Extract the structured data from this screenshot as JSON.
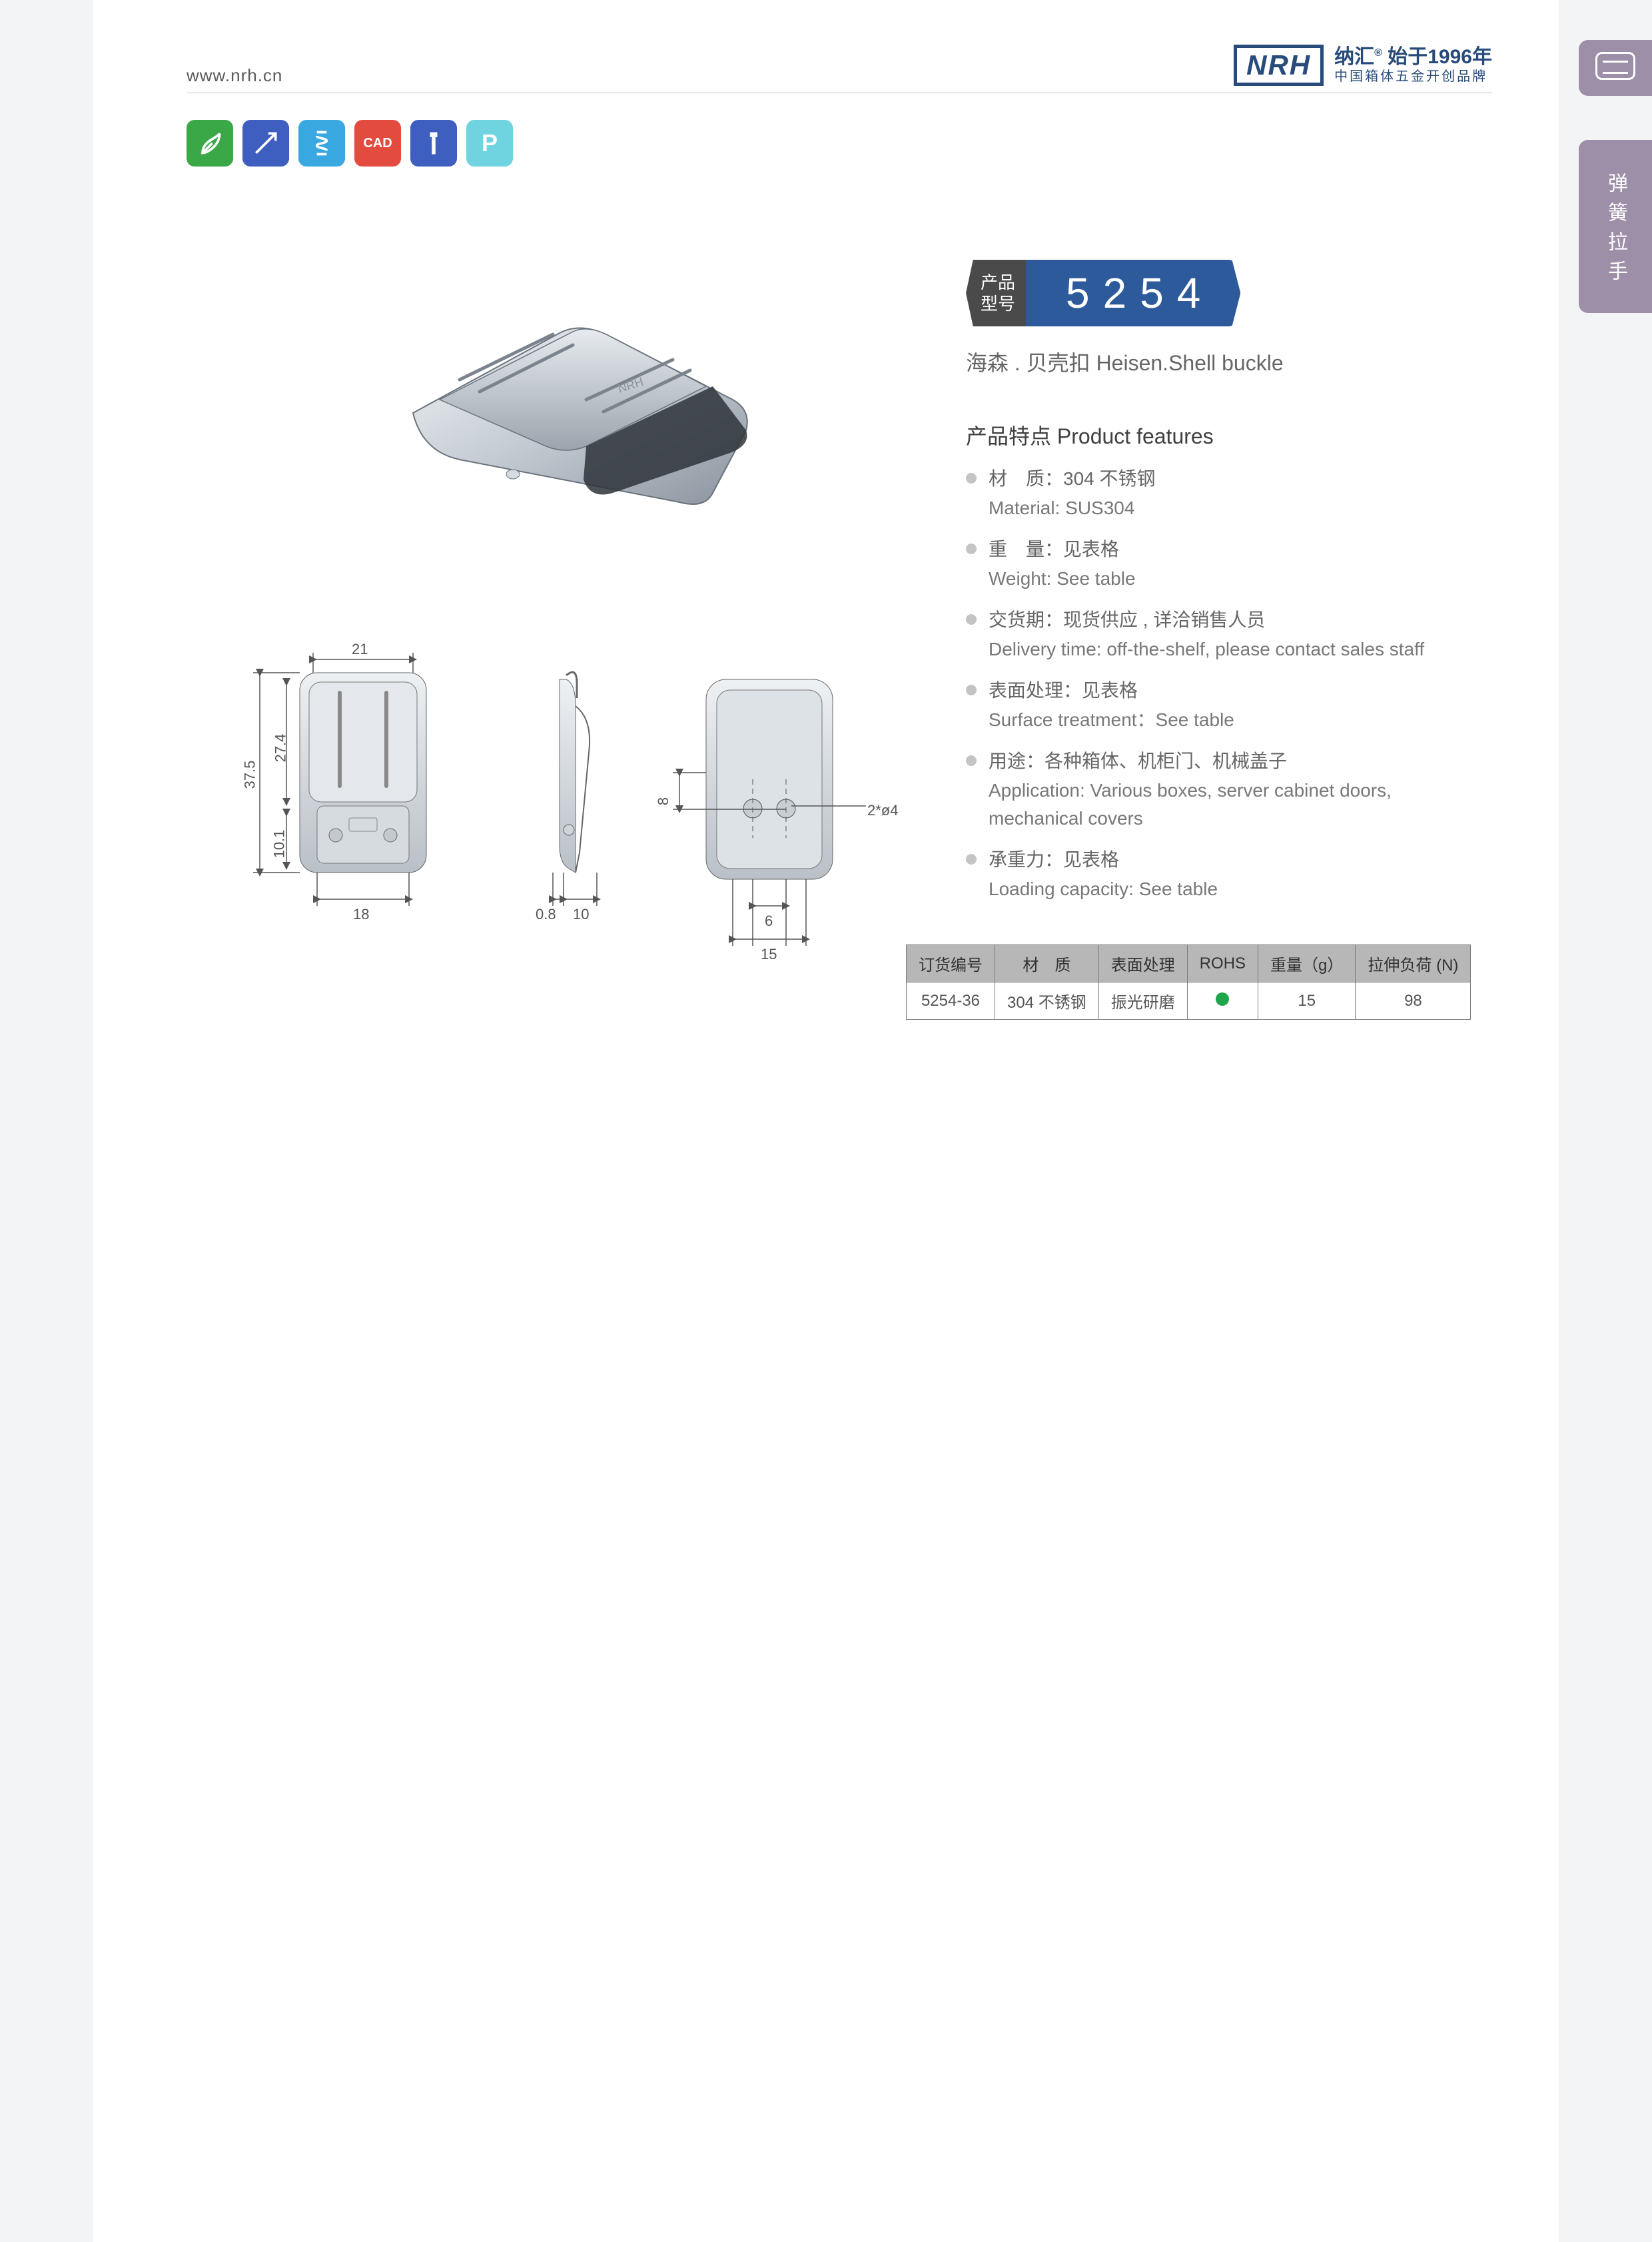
{
  "header": {
    "url": "www.nrh.cn",
    "logo_mark": "NRH",
    "brand_cn": "纳汇",
    "since": "始于1996年",
    "tagline": "中国箱体五金开创品牌"
  },
  "side": {
    "category": "弹簧拉手"
  },
  "icons": [
    {
      "name": "eco-icon",
      "color": "#3ba847",
      "glyph": "leaf"
    },
    {
      "name": "tools-icon",
      "color": "#3e5fbf",
      "glyph": "tools"
    },
    {
      "name": "spring-icon",
      "color": "#3aa8e0",
      "glyph": "spring"
    },
    {
      "name": "cad-icon",
      "color": "#e34b3e",
      "glyph": "CAD"
    },
    {
      "name": "bolt-icon",
      "color": "#3e5fbf",
      "glyph": "bolt"
    },
    {
      "name": "p-icon",
      "color": "#6fd4e0",
      "glyph": "P"
    }
  ],
  "model": {
    "label_top": "产品",
    "label_bot": "型号",
    "number": "5254",
    "subtitle": "海森 . 贝壳扣   Heisen.Shell buckle"
  },
  "features": {
    "title": "产品特点  Product features",
    "items": [
      {
        "cn": "材　质：304 不锈钢",
        "en": "Material: SUS304"
      },
      {
        "cn": "重　量：见表格",
        "en": "Weight: See table"
      },
      {
        "cn": "交货期：现货供应 , 详洽销售人员",
        "en": "Delivery time: off-the-shelf, please contact sales staff"
      },
      {
        "cn": "表面处理：见表格",
        "en": "Surface treatment：See table"
      },
      {
        "cn": "用途：各种箱体、机柜门、机械盖子",
        "en": "Application: Various boxes, server cabinet doors, mechanical covers"
      },
      {
        "cn": "承重力：见表格",
        "en": "Loading capacity: See table"
      }
    ]
  },
  "drawings": {
    "dims": {
      "top_w": "21",
      "h_outer": "37.5",
      "h_inner": "27.4",
      "h_lower": "10.1",
      "bot_w": "18",
      "side_t": "0.8",
      "side_w": "10",
      "phi": "2*ø4",
      "sv_h": "8",
      "sv_gap": "6",
      "sv_pitch": "15"
    }
  },
  "table": {
    "columns": [
      "订货编号",
      "材　质",
      "表面处理",
      "ROHS",
      "重量（g）",
      "拉伸负荷 (N)"
    ],
    "rows": [
      {
        "code": "5254-36",
        "material": "304 不锈钢",
        "surface": "振光研磨",
        "rohs": true,
        "weight": "15",
        "load": "98"
      }
    ]
  }
}
